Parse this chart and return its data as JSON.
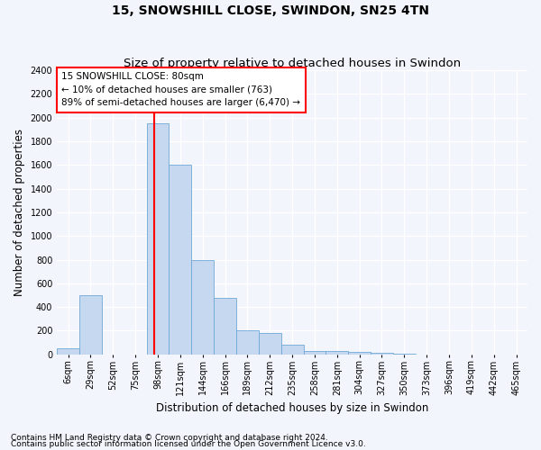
{
  "title": "15, SNOWSHILL CLOSE, SWINDON, SN25 4TN",
  "subtitle": "Size of property relative to detached houses in Swindon",
  "xlabel": "Distribution of detached houses by size in Swindon",
  "ylabel": "Number of detached properties",
  "categories": [
    "6sqm",
    "29sqm",
    "52sqm",
    "75sqm",
    "98sqm",
    "121sqm",
    "144sqm",
    "166sqm",
    "189sqm",
    "212sqm",
    "235sqm",
    "258sqm",
    "281sqm",
    "304sqm",
    "327sqm",
    "350sqm",
    "373sqm",
    "396sqm",
    "419sqm",
    "442sqm",
    "465sqm"
  ],
  "values": [
    50,
    500,
    0,
    0,
    1950,
    1600,
    800,
    480,
    200,
    180,
    80,
    30,
    25,
    20,
    10,
    5,
    0,
    0,
    0,
    0,
    0
  ],
  "bar_color": "#c5d8ef",
  "bar_edge_color": "#6fa8d6",
  "red_line_x": 3.85,
  "ylim": [
    0,
    2400
  ],
  "yticks": [
    0,
    200,
    400,
    600,
    800,
    1000,
    1200,
    1400,
    1600,
    1800,
    2000,
    2200,
    2400
  ],
  "annotation_text": "15 SNOWSHILL CLOSE: 80sqm\n← 10% of detached houses are smaller (763)\n89% of semi-detached houses are larger (6,470) →",
  "footnote1": "Contains HM Land Registry data © Crown copyright and database right 2024.",
  "footnote2": "Contains public sector information licensed under the Open Government Licence v3.0.",
  "background_color": "#f2f5fb",
  "plot_bg_color": "#f2f5fb",
  "grid_color": "#ffffff",
  "title_fontsize": 10,
  "subtitle_fontsize": 9.5,
  "axis_label_fontsize": 8.5,
  "tick_fontsize": 7,
  "annotation_fontsize": 7.5,
  "footnote_fontsize": 6.5
}
